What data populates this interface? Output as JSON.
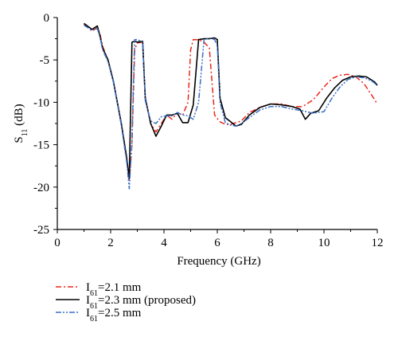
{
  "chart_data": {
    "type": "line",
    "xlabel": "Frequency (GHz)",
    "ylabel": {
      "main": "S",
      "sub": "11",
      "unit": " (dB)"
    },
    "xlim": [
      0,
      12
    ],
    "ylim": [
      -25,
      0
    ],
    "xticks": [
      0,
      2,
      4,
      6,
      8,
      10,
      12
    ],
    "yticks": [
      0,
      -5,
      -10,
      -15,
      -20,
      -25
    ],
    "grid": false,
    "legend_position": "bottom-left, below plot",
    "series": [
      {
        "name": {
          "main": "I",
          "sub": "61",
          "rest": "=2.1 mm"
        },
        "color": "#e8281b",
        "dash": "dashdot",
        "x": [
          1.0,
          1.3,
          1.5,
          1.6,
          1.7,
          1.9,
          2.1,
          2.4,
          2.6,
          2.7,
          2.8,
          2.9,
          3.0,
          3.2,
          3.3,
          3.5,
          3.7,
          3.9,
          4.1,
          4.3,
          4.5,
          4.7,
          4.9,
          5.0,
          5.1,
          5.3,
          5.5,
          5.7,
          5.9,
          6.1,
          6.3,
          6.5,
          6.7,
          6.9,
          7.2,
          7.6,
          8.0,
          8.4,
          8.8,
          9.2,
          9.6,
          10.0,
          10.3,
          10.6,
          10.9,
          11.2,
          11.5,
          11.8,
          12.0
        ],
        "y": [
          -0.8,
          -1.6,
          -1.2,
          -1.9,
          -3.4,
          -5.0,
          -7.5,
          -12.5,
          -16.5,
          -19.2,
          -15.0,
          -3.8,
          -3.0,
          -2.9,
          -9.5,
          -12.5,
          -13.5,
          -12.5,
          -11.5,
          -12.0,
          -11.2,
          -11.5,
          -10.0,
          -3.8,
          -2.6,
          -2.6,
          -2.9,
          -3.6,
          -11.5,
          -12.3,
          -12.6,
          -12.6,
          -12.4,
          -12.2,
          -11.2,
          -10.6,
          -10.2,
          -10.2,
          -10.5,
          -10.5,
          -9.7,
          -8.2,
          -7.2,
          -6.8,
          -6.7,
          -7.0,
          -7.8,
          -9.2,
          -10.2
        ]
      },
      {
        "name": {
          "main": "I",
          "sub": "61",
          "rest": "=2.3 mm (proposed)"
        },
        "color": "#000000",
        "dash": "solid",
        "x": [
          1.0,
          1.3,
          1.5,
          1.6,
          1.7,
          1.9,
          2.1,
          2.4,
          2.6,
          2.7,
          2.8,
          2.9,
          3.0,
          3.2,
          3.3,
          3.5,
          3.7,
          3.9,
          4.1,
          4.3,
          4.5,
          4.7,
          4.9,
          5.1,
          5.3,
          5.5,
          5.7,
          5.9,
          6.0,
          6.1,
          6.3,
          6.5,
          6.7,
          6.9,
          7.2,
          7.6,
          8.0,
          8.4,
          8.8,
          9.1,
          9.3,
          9.5,
          9.8,
          10.1,
          10.4,
          10.7,
          11.0,
          11.3,
          11.6,
          11.9,
          12.0
        ],
        "y": [
          -0.7,
          -1.4,
          -1.0,
          -2.2,
          -3.6,
          -5.0,
          -7.5,
          -12.5,
          -16.5,
          -19.0,
          -2.9,
          -2.8,
          -2.9,
          -2.8,
          -9.5,
          -12.5,
          -14.0,
          -12.8,
          -11.5,
          -11.5,
          -11.3,
          -12.4,
          -12.4,
          -10.3,
          -2.6,
          -2.5,
          -2.5,
          -2.4,
          -2.6,
          -9.5,
          -11.8,
          -12.3,
          -12.8,
          -12.6,
          -11.5,
          -10.6,
          -10.2,
          -10.3,
          -10.5,
          -10.8,
          -12.0,
          -11.3,
          -11.0,
          -9.5,
          -8.3,
          -7.4,
          -7.0,
          -6.9,
          -7.0,
          -7.6,
          -8.0
        ]
      },
      {
        "name": {
          "main": "I",
          "sub": "61",
          "rest": "=2.5 mm"
        },
        "color": "#3c6fc4",
        "dash": "dashdotdot",
        "x": [
          1.0,
          1.3,
          1.5,
          1.6,
          1.7,
          1.9,
          2.1,
          2.4,
          2.6,
          2.7,
          2.8,
          2.9,
          3.0,
          3.2,
          3.3,
          3.5,
          3.7,
          3.9,
          4.1,
          4.3,
          4.5,
          4.7,
          4.9,
          5.1,
          5.3,
          5.5,
          5.7,
          5.9,
          6.0,
          6.1,
          6.3,
          6.5,
          6.7,
          6.9,
          7.2,
          7.6,
          8.0,
          8.4,
          8.8,
          9.2,
          9.6,
          10.0,
          10.3,
          10.6,
          10.9,
          11.2,
          11.5,
          11.8,
          12.0
        ],
        "y": [
          -0.9,
          -1.5,
          -1.3,
          -2.3,
          -3.8,
          -5.2,
          -7.6,
          -12.7,
          -17.0,
          -20.2,
          -14.5,
          -2.6,
          -2.6,
          -2.9,
          -9.8,
          -12.2,
          -12.5,
          -11.7,
          -11.6,
          -11.6,
          -11.2,
          -11.5,
          -11.6,
          -12.0,
          -10.0,
          -2.6,
          -2.4,
          -2.6,
          -3.3,
          -10.0,
          -12.4,
          -12.7,
          -12.8,
          -12.5,
          -11.8,
          -10.9,
          -10.5,
          -10.5,
          -10.8,
          -11.0,
          -11.3,
          -11.1,
          -9.5,
          -8.2,
          -7.3,
          -7.0,
          -7.1,
          -7.5,
          -8.0
        ]
      }
    ]
  }
}
